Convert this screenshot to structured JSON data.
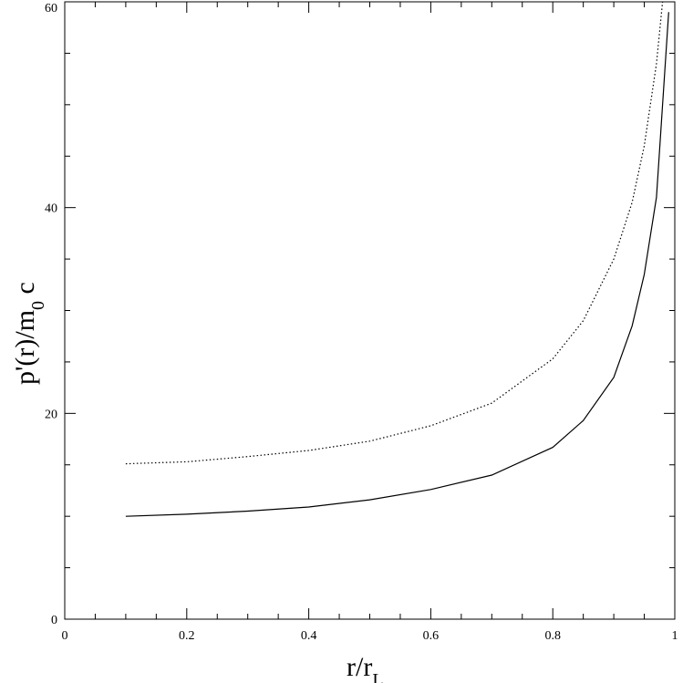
{
  "chart_data": {
    "type": "line",
    "xlabel": "r/r",
    "xlabel_sub": "L",
    "ylabel": "p'(r)/m",
    "ylabel_sub": "0",
    "ylabel_tail": " c",
    "xlim": [
      0,
      1
    ],
    "ylim": [
      0,
      60
    ],
    "x_ticks": [
      "0",
      "0.2",
      "0.4",
      "0.6",
      "0.8",
      "1"
    ],
    "y_ticks": [
      "0",
      "20",
      "40",
      "60"
    ],
    "grid": false,
    "legend": "none",
    "series": [
      {
        "style": "dotted",
        "color": "#000000",
        "x": [
          0.1,
          0.2,
          0.3,
          0.4,
          0.5,
          0.6,
          0.7,
          0.8,
          0.85,
          0.9,
          0.93,
          0.95,
          0.97,
          0.98
        ],
        "y": [
          15.1,
          15.3,
          15.8,
          16.4,
          17.3,
          18.8,
          21.0,
          25.3,
          29.0,
          35.0,
          40.5,
          46.0,
          54.0,
          60.0
        ]
      },
      {
        "style": "solid",
        "color": "#000000",
        "x": [
          0.1,
          0.2,
          0.3,
          0.4,
          0.5,
          0.6,
          0.7,
          0.8,
          0.85,
          0.9,
          0.93,
          0.95,
          0.97,
          0.99
        ],
        "y": [
          10.0,
          10.2,
          10.5,
          10.9,
          11.6,
          12.6,
          14.0,
          16.7,
          19.3,
          23.5,
          28.5,
          33.5,
          41.0,
          59.0
        ]
      }
    ]
  }
}
